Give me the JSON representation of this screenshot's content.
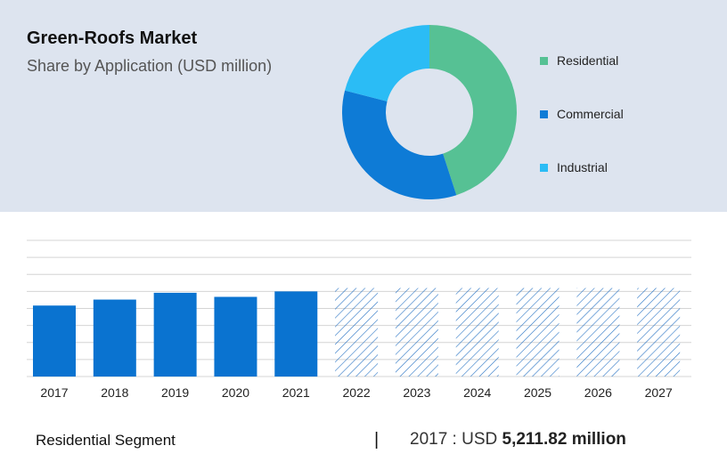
{
  "header": {
    "title": "Green-Roofs Market",
    "subtitle": "Share by Application (USD million)"
  },
  "donut": {
    "segments": [
      {
        "name": "Residential",
        "share": 0.45,
        "color": "#56c194"
      },
      {
        "name": "Commercial",
        "share": 0.34,
        "color": "#0e7bd6"
      },
      {
        "name": "Industrial",
        "share": 0.21,
        "color": "#2bbcf5"
      }
    ]
  },
  "chart_data": {
    "type": "bar",
    "categories": [
      "2017",
      "2018",
      "2019",
      "2020",
      "2021",
      "2022",
      "2023",
      "2024",
      "2025",
      "2026",
      "2027"
    ],
    "values": [
      5211.82,
      5650,
      6150,
      5850,
      6250,
      null,
      null,
      null,
      null,
      null,
      null
    ],
    "forecast_categories": [
      "2022",
      "2023",
      "2024",
      "2025",
      "2026",
      "2027"
    ],
    "ylim": [
      0,
      10000
    ],
    "grid": true,
    "title": "",
    "xlabel": "",
    "ylabel": "",
    "colors": {
      "actual": "#0a73d0",
      "forecast_hatch": "#2a74c4",
      "grid": "#d4d4d4"
    }
  },
  "footer": {
    "segment": "Residential Segment",
    "separator": "|",
    "year_prefix": "2017 : USD ",
    "value": "5,211.82 million"
  }
}
